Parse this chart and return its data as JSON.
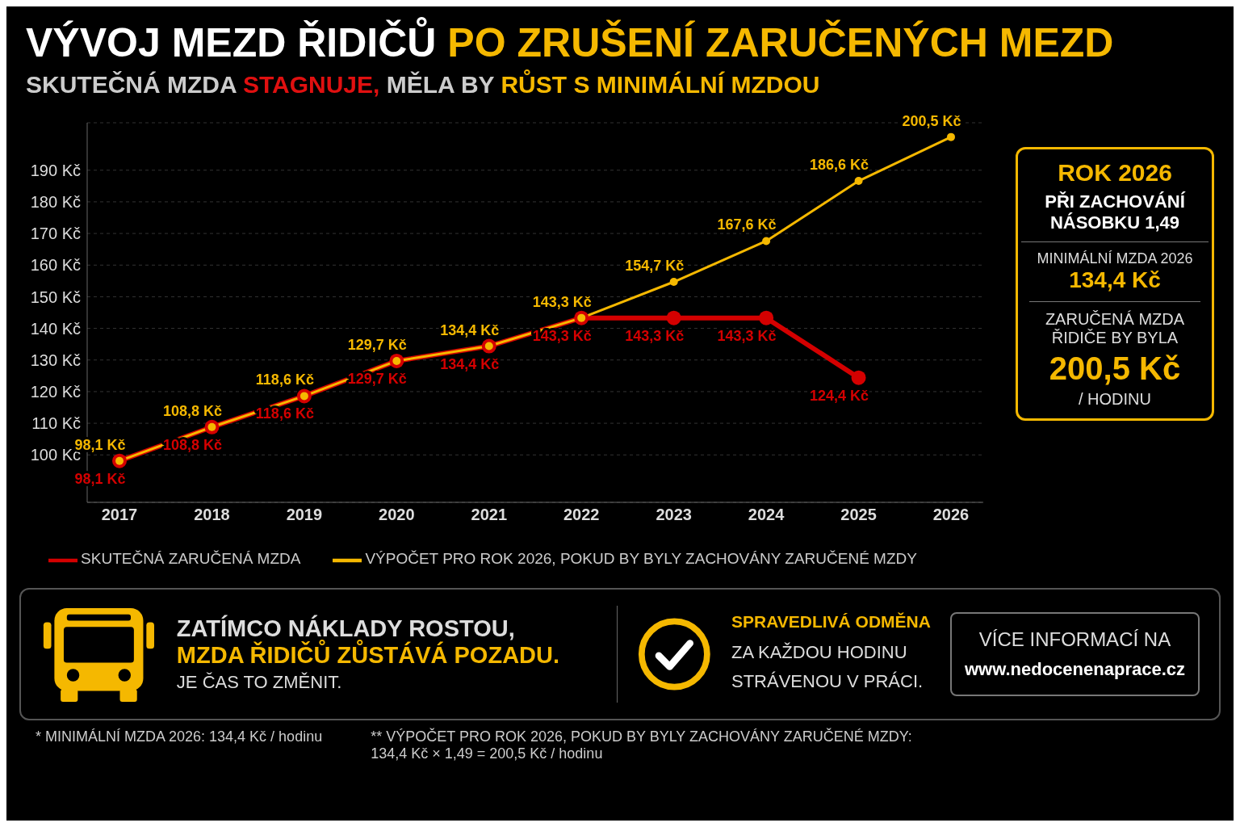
{
  "chart_data": {
    "type": "line",
    "title": "VÝVOJ MEZD ŘIDIČŮ PO ZRUŠENÍ ZARUČENÝCH MEZD",
    "subtitle": "SKUTEČNÁ MZDA STAGNUJE, MĚLA BY RŮST S MINIMÁLNÍ MZDOU",
    "categories": [
      "2017",
      "2018",
      "2019",
      "2020",
      "2021",
      "2022",
      "2023",
      "2024",
      "2025",
      "2026"
    ],
    "series": [
      {
        "name": "VÝPOČET PRO ROK 2026, POKUD BY BYLY ZACHOVÁNY ZARUČENÉ MZDY",
        "color": "#f5b800",
        "values": [
          98.1,
          108.8,
          118.6,
          129.7,
          134.4,
          143.3,
          154.7,
          167.6,
          186.6,
          200.5
        ],
        "value_labels": [
          "98,1 Kč",
          "108,8 Kč",
          "118,6 Kč",
          "129,7 Kč",
          "134,4 Kč",
          "143,3 Kč",
          "154,7 Kč",
          "167,6 Kč",
          "186,6 Kč",
          "200,5 Kč"
        ]
      },
      {
        "name": "SKUTEČNÁ ZARUČENÁ MZDA",
        "color": "#d40000",
        "values": [
          98.1,
          108.8,
          118.6,
          129.7,
          134.4,
          143.3,
          143.3,
          143.3,
          124.4,
          null
        ],
        "value_labels": [
          "98,1 Kč",
          "108,8 Kč",
          "118,6 Kč",
          "129,7 Kč",
          "134,4 Kč",
          "143,3 Kč",
          "143,3 Kč",
          "143,3 Kč",
          "124,4 Kč",
          null
        ]
      }
    ],
    "ylim": [
      85,
      205
    ],
    "yticks": [
      {
        "value": 100,
        "label": "100 Kč"
      },
      {
        "value": 110,
        "label": "110 Kč"
      },
      {
        "value": 120,
        "label": "120 Kč"
      },
      {
        "value": 130,
        "label": "130 Kč"
      },
      {
        "value": 140,
        "label": "140 Kč"
      },
      {
        "value": 150,
        "label": "150 Kč"
      },
      {
        "value": 160,
        "label": "160 Kč"
      },
      {
        "value": 170,
        "label": "170 Kč"
      },
      {
        "value": 180,
        "label": "180 Kč"
      },
      {
        "value": 190,
        "label": "190 Kč"
      }
    ],
    "grid": "y",
    "legend": "bottom",
    "marker": "circle",
    "line_style": "solid",
    "annotations": [
      "ROK 2026",
      "PŘI ZACHOVÁNÍ NÁSOBKU 1,49",
      "MINIMÁLNÍ MZDA 2026",
      "134,4 Kč",
      "ZARUČENÁ MZDA ŘIDIČE BY BYLA",
      "200,5 Kč",
      "/ HODINU",
      "ZATÍMCO NÁKLADY ROSTOU,",
      "MZDA ŘIDIČŮ ZŮSTÁVÁ POZADU.",
      "JE ČAS TO ZMĚNIT.",
      "SPRAVEDLIVÁ ODMĚNA",
      "ZA KAŽDOU HODINU STRÁVENOU V PRÁCI.",
      "VÍCE INFORMACÍ NA",
      "www.nedocenenaprace.cz",
      "* MINIMÁLNÍ MZDA 2026: 134,4 Kč / hodinu",
      "** VÝPOČET PRO ROK 2026, POKUD BY BYLY ZACHOVÁNY ZARUČENÉ MZDY: 134,4 Kč × 1,49 = 200,5 Kč / hodinu"
    ]
  }
}
